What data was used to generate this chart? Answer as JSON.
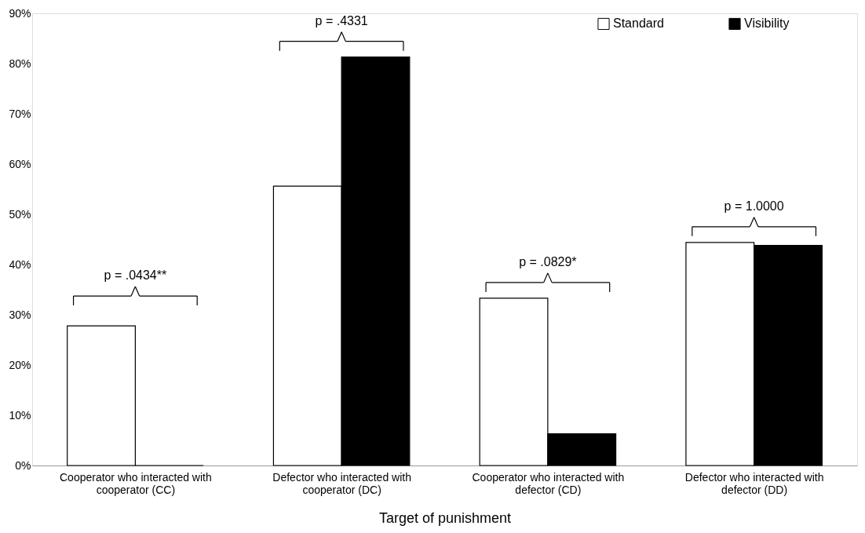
{
  "chart_data": {
    "type": "bar",
    "xlabel": "Target of punishment",
    "categories": [
      "Cooperator who interacted with cooperator (CC)",
      "Defector who interacted with cooperator (DC)",
      "Cooperator who interacted with defector (CD)",
      "Defector who interacted with defector (DD)"
    ],
    "series": [
      {
        "name": "Standard",
        "color": "#ffffff",
        "values": [
          27.8,
          55.6,
          33.3,
          44.4
        ]
      },
      {
        "name": "Visibility",
        "color": "#000000",
        "values": [
          0,
          81.3,
          6.3,
          43.8
        ]
      }
    ],
    "ylim": [
      0,
      90
    ],
    "yticks": [
      {
        "value": 0,
        "label": "0%"
      },
      {
        "value": 10,
        "label": "10%"
      },
      {
        "value": 20,
        "label": "20%"
      },
      {
        "value": 30,
        "label": "30%"
      },
      {
        "value": 40,
        "label": "40%"
      },
      {
        "value": 50,
        "label": "50%"
      },
      {
        "value": 60,
        "label": "60%"
      },
      {
        "value": 70,
        "label": "70%"
      },
      {
        "value": 80,
        "label": "80%"
      },
      {
        "value": 90,
        "label": "90%"
      }
    ],
    "annotations": [
      "p = .0434**",
      "p = .4331",
      "p = .0829*",
      "p = 1.0000"
    ],
    "grid": false,
    "legend": "top right"
  }
}
